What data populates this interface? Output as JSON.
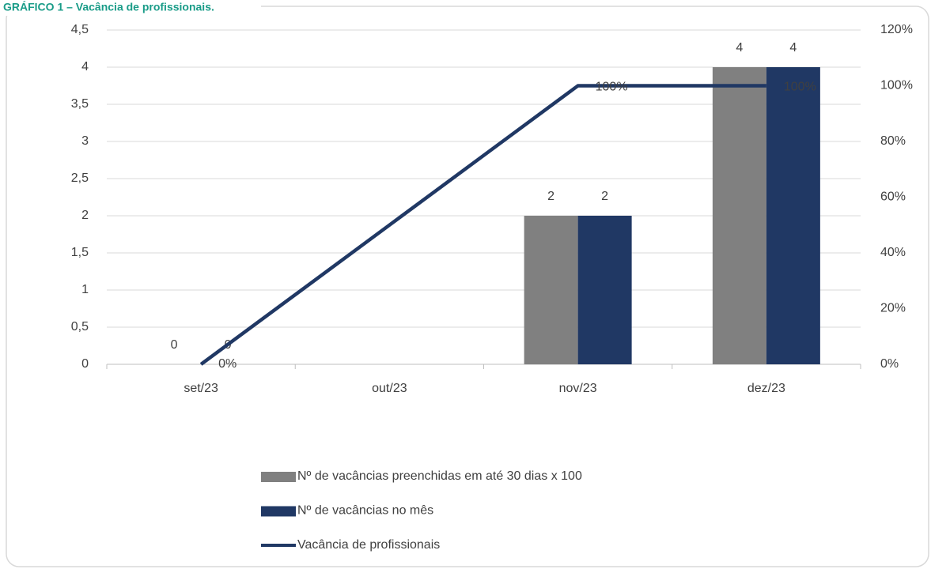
{
  "chart_data": {
    "type": "bar_line",
    "title": "GRÁFICO 1 – Vacância de profissionais.",
    "categories": [
      "set/23",
      "out/23",
      "nov/23",
      "dez/23"
    ],
    "series": [
      {
        "name": "Nº de vacâncias preenchidas em até 30 dias x 100",
        "type": "bar",
        "color": "#808080",
        "values": [
          0,
          null,
          2,
          4
        ]
      },
      {
        "name": "Nº de vacâncias no mês",
        "type": "bar",
        "color": "#203864",
        "values": [
          0,
          null,
          2,
          4
        ]
      },
      {
        "name": "Vacância de profissionais",
        "type": "line",
        "axis": "y2",
        "color": "#203864",
        "values": [
          0,
          50,
          100,
          100
        ],
        "value_labels": [
          "0%",
          null,
          "100%",
          "100%"
        ]
      }
    ],
    "ylim": [
      0,
      4.5
    ],
    "yticks": [
      0,
      {
        "value": 0.5,
        "label": "0,5"
      },
      1,
      {
        "value": 1.5,
        "label": "1,5"
      },
      2,
      {
        "value": 2.5,
        "label": "2,5"
      },
      3,
      {
        "value": 3.5,
        "label": "3,5"
      },
      4,
      {
        "value": 4.5,
        "label": "4,5"
      }
    ],
    "y2lim": [
      0,
      120
    ],
    "y2ticks": [
      {
        "value": 0,
        "label": "0%"
      },
      {
        "value": 20,
        "label": "20%"
      },
      {
        "value": 40,
        "label": "40%"
      },
      {
        "value": 60,
        "label": "60%"
      },
      {
        "value": 80,
        "label": "80%"
      },
      {
        "value": 100,
        "label": "100%"
      },
      {
        "value": 120,
        "label": "120%"
      }
    ],
    "grid": true,
    "legend": "bottom"
  }
}
